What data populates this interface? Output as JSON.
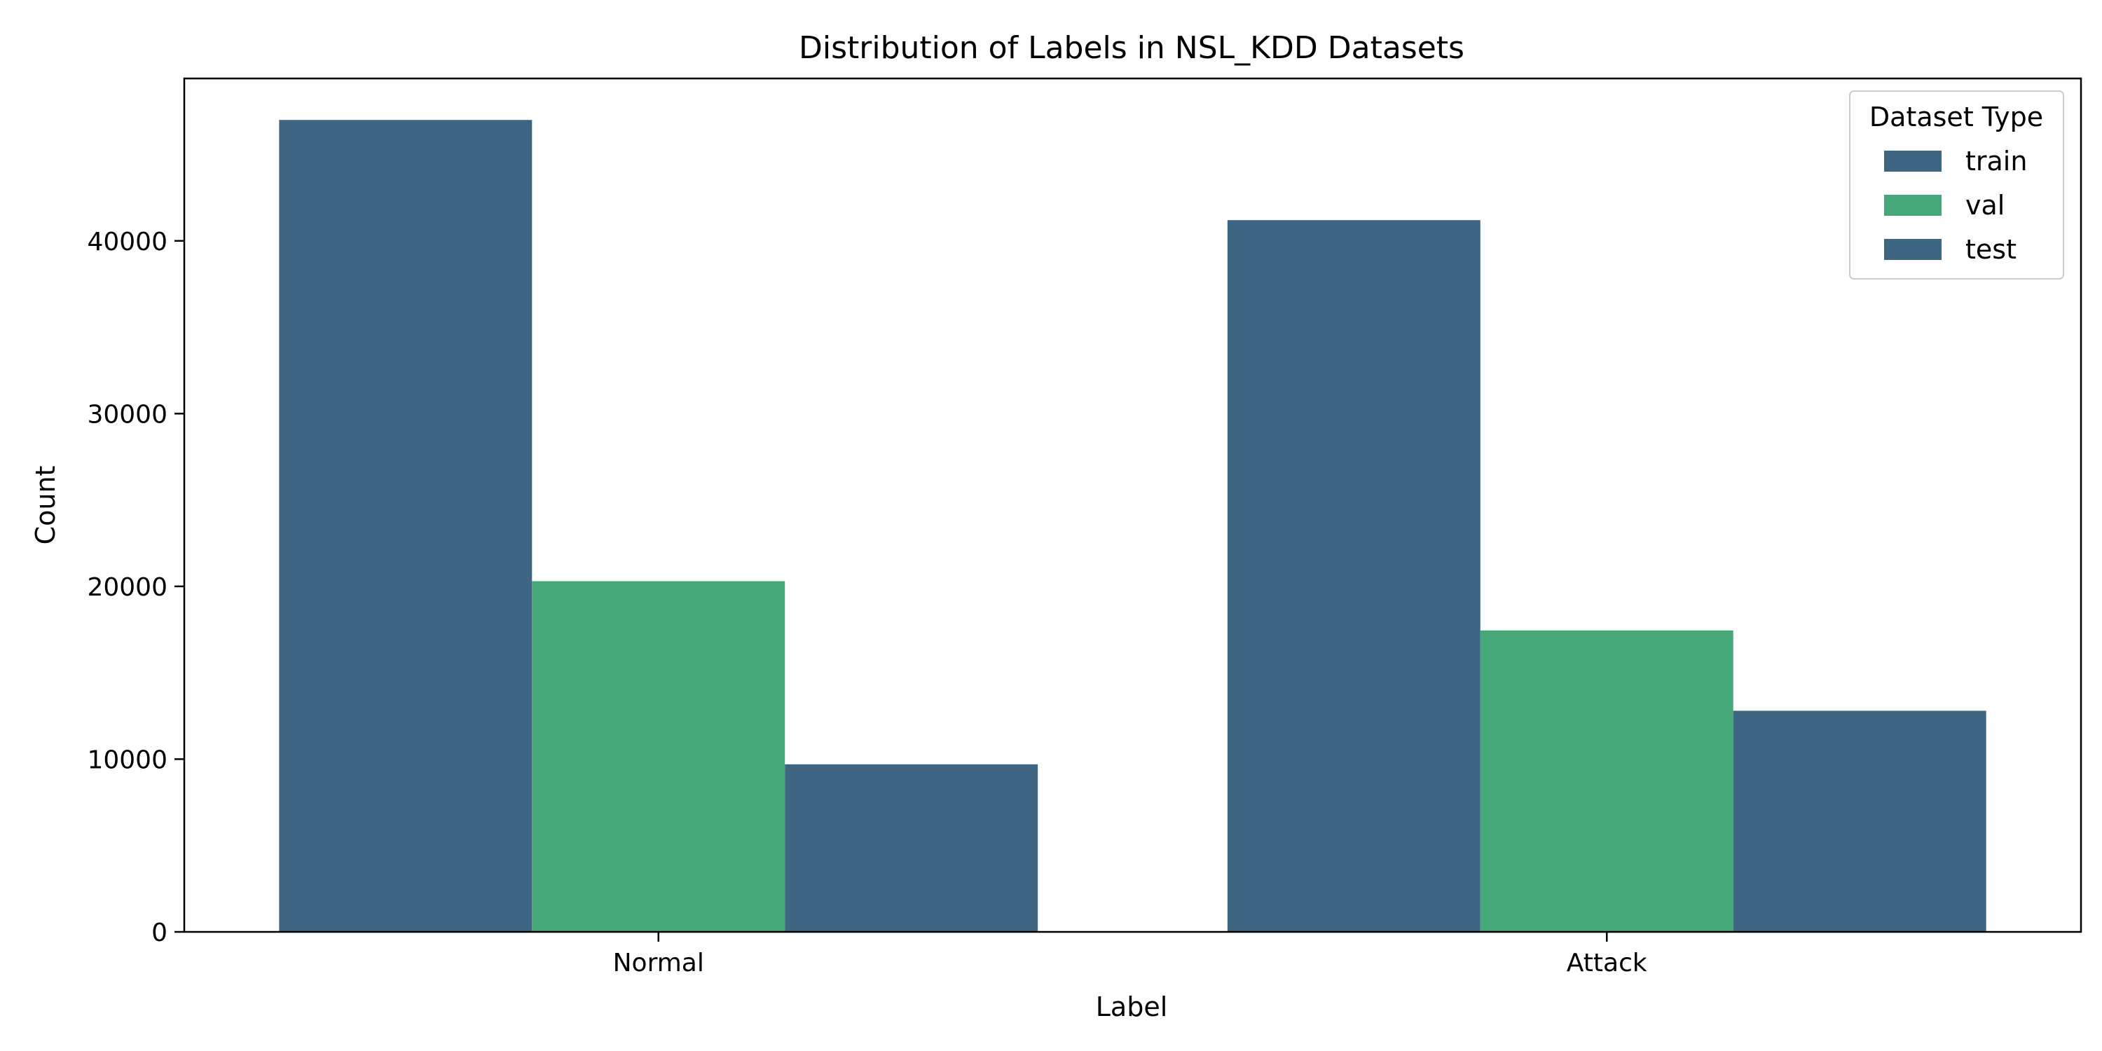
{
  "chart_data": {
    "type": "bar",
    "title": "Distribution of Labels in NSL_KDD Datasets",
    "xlabel": "Label",
    "ylabel": "Count",
    "categories": [
      "Normal",
      "Attack"
    ],
    "series": [
      {
        "name": "train",
        "values": [
          47000,
          41200
        ],
        "color": "#3e6683"
      },
      {
        "name": "val",
        "values": [
          20300,
          17450
        ],
        "color": "#46a878"
      },
      {
        "name": "test",
        "values": [
          9700,
          12800
        ],
        "color": "#3e6683"
      }
    ],
    "ylim": [
      0,
      49400
    ],
    "yticks": [
      0,
      10000,
      20000,
      30000,
      40000
    ],
    "ytick_labels": [
      "0",
      "10000",
      "20000",
      "30000",
      "40000"
    ],
    "grid": false,
    "legend": {
      "title": "Dataset Type",
      "position": "top-right"
    }
  }
}
